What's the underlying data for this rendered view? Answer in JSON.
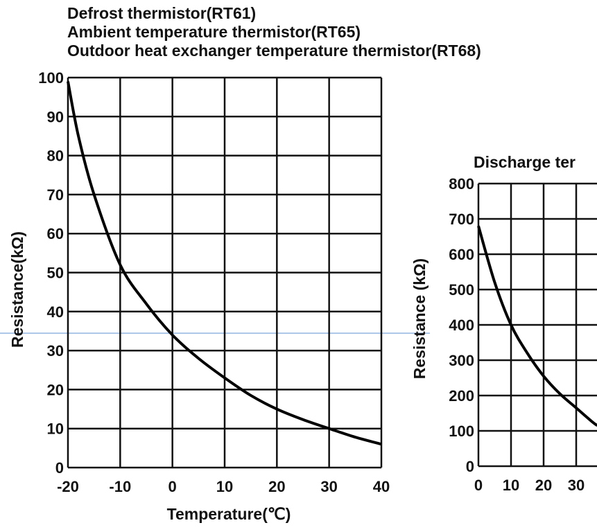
{
  "chart_data": [
    {
      "type": "line",
      "title_lines": [
        "Defrost thermistor(RT61)",
        "Ambient temperature thermistor(RT65)",
        "Outdoor heat exchanger temperature thermistor(RT68)"
      ],
      "xlabel": "Temperature(℃)",
      "ylabel": "Resistance(kΩ)",
      "xlim": [
        -20,
        40
      ],
      "ylim": [
        0,
        100
      ],
      "xticks": [
        -20,
        -10,
        0,
        10,
        20,
        30,
        40
      ],
      "yticks": [
        0,
        10,
        20,
        30,
        40,
        50,
        60,
        70,
        80,
        90,
        100
      ],
      "grid": true,
      "x": [
        -20,
        -18,
        -15,
        -10,
        -5,
        0,
        5,
        10,
        15,
        20,
        25,
        30,
        35,
        40
      ],
      "y": [
        99,
        85,
        70,
        52,
        42,
        34,
        28,
        23,
        18.5,
        15,
        12.3,
        10,
        7.8,
        6
      ]
    },
    {
      "type": "line",
      "title": "Discharge ter",
      "ylabel": "Resistance (kΩ)",
      "xlim": [
        0,
        40
      ],
      "ylim": [
        0,
        800
      ],
      "xticks": [
        0,
        10,
        20,
        30
      ],
      "yticks": [
        0,
        100,
        200,
        300,
        400,
        500,
        600,
        700,
        800
      ],
      "grid": true,
      "x": [
        0,
        5,
        10,
        15,
        20,
        25,
        30,
        35,
        36.5
      ],
      "y": [
        680,
        520,
        400,
        320,
        255,
        205,
        165,
        125,
        115
      ]
    }
  ]
}
